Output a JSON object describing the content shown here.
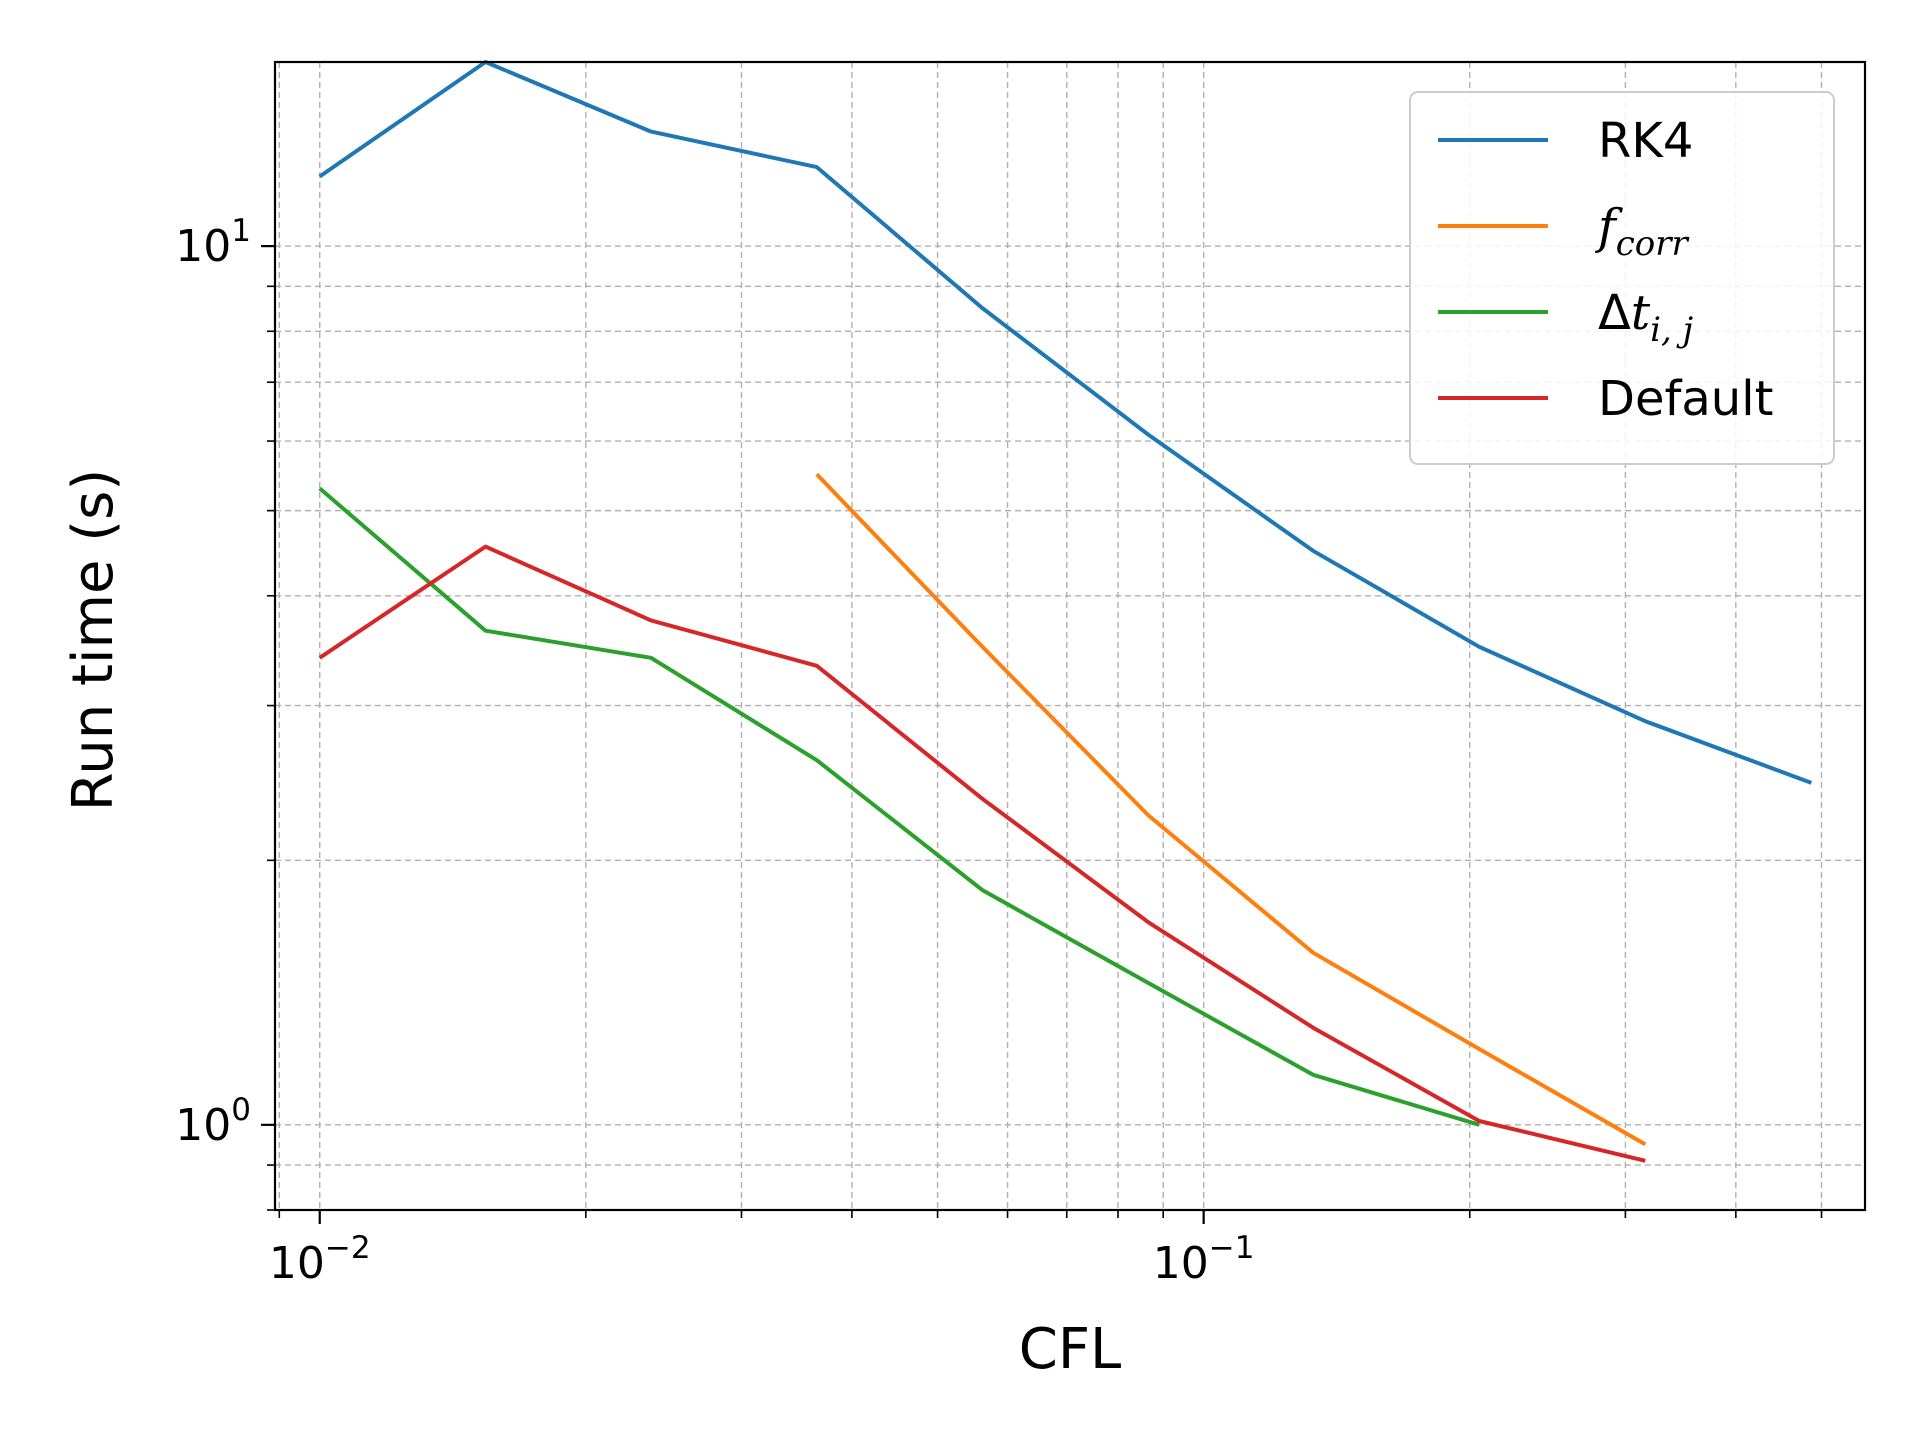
{
  "chart_data": {
    "type": "line",
    "xlabel": "CFL",
    "ylabel": "Run time (s)",
    "xscale": "log",
    "yscale": "log",
    "xlim": [
      0.0089,
      0.56
    ],
    "ylim": [
      0.8,
      16.2
    ],
    "grid": "major and minor, dashed",
    "legend_position": "top-right",
    "x_ticks": [
      {
        "base": "10",
        "exp": "−2"
      },
      {
        "base": "10",
        "exp": "−1"
      }
    ],
    "y_ticks": [
      {
        "base": "10",
        "exp": "0"
      },
      {
        "base": "10",
        "exp": "1"
      }
    ],
    "series": [
      {
        "name": "RK4",
        "color": "#1f77b4",
        "x": [
          0.01,
          0.0154,
          0.0237,
          0.0365,
          0.0562,
          0.0866,
          0.133,
          0.205,
          0.316,
          0.487
        ],
        "y": [
          12.0,
          16.2,
          13.5,
          12.3,
          8.5,
          6.1,
          4.5,
          3.5,
          2.88,
          2.45
        ]
      },
      {
        "name": "f",
        "name_sub": "corr",
        "color": "#ff7f0e",
        "x": [
          0.0365,
          0.0562,
          0.0866,
          0.133,
          0.205,
          0.316
        ],
        "y": [
          5.5,
          3.5,
          2.25,
          1.57,
          1.22,
          0.95
        ]
      },
      {
        "name": "Δt",
        "name_sub": "i, j",
        "color": "#2ca02c",
        "x": [
          0.01,
          0.0154,
          0.0237,
          0.0365,
          0.0562,
          0.0866,
          0.133,
          0.205
        ],
        "y": [
          5.3,
          3.65,
          3.4,
          2.6,
          1.85,
          1.45,
          1.14,
          1.0
        ]
      },
      {
        "name": "Default",
        "color": "#d62728",
        "x": [
          0.01,
          0.0154,
          0.0237,
          0.0365,
          0.0562,
          0.0866,
          0.133,
          0.205,
          0.316
        ],
        "y": [
          3.4,
          4.55,
          3.75,
          3.33,
          2.35,
          1.7,
          1.29,
          1.01,
          0.91
        ]
      }
    ]
  }
}
